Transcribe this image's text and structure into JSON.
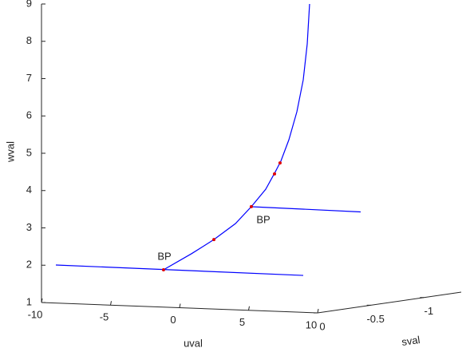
{
  "chart_data": {
    "type": "line3d",
    "x_label": "uval",
    "y_label": "sval",
    "z_label": "wval",
    "xlim": [
      -10,
      10
    ],
    "xticks": [
      -10,
      -5,
      0,
      5,
      10
    ],
    "ylim": [
      -1.35,
      0
    ],
    "yticks": [
      -1,
      -0.5,
      0
    ],
    "zlim": [
      1,
      9
    ],
    "zticks": [
      1,
      2,
      3,
      4,
      5,
      6,
      7,
      8,
      9
    ],
    "line_color": "#0000ff",
    "point_color": "#e00000",
    "lines": [
      {
        "u": [
          -1.16,
          0.87,
          2.49,
          4.05,
          5.2,
          6.24,
          6.94,
          7.34,
          7.92,
          8.5,
          8.96,
          9.25,
          9.42
        ],
        "s": [
          0,
          0,
          0,
          0,
          0,
          0,
          0,
          0,
          0,
          0,
          0,
          0,
          0
        ],
        "w": [
          2.0,
          2.46,
          2.86,
          3.31,
          3.78,
          4.26,
          4.74,
          5.03,
          5.61,
          6.37,
          7.23,
          8.2,
          9.27
        ]
      },
      {
        "u": [
          -8.96,
          8.96
        ],
        "s": [
          0,
          0
        ],
        "w": [
          2.02,
          1.99
        ]
      },
      {
        "u": [
          5.09,
          13.12
        ],
        "s": [
          0,
          0
        ],
        "w": [
          3.78,
          3.75
        ]
      }
    ],
    "points": {
      "u": [
        -1.16,
        2.49,
        5.2,
        6.88,
        7.28
      ],
      "s": [
        0,
        0,
        0,
        0,
        0
      ],
      "w": [
        2.0,
        2.86,
        3.78,
        4.68,
        4.98
      ]
    },
    "annotations": [
      "BP",
      "BP"
    ]
  }
}
